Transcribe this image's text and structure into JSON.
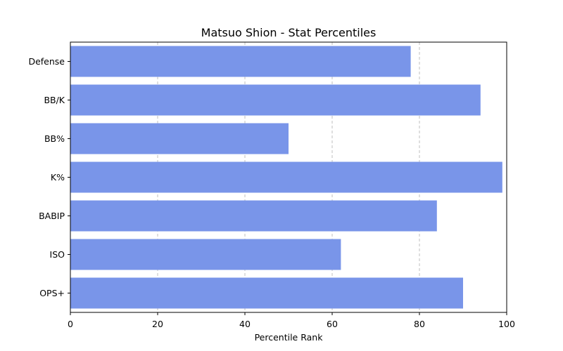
{
  "chart_data": {
    "type": "bar",
    "orientation": "horizontal",
    "title": "Matsuo Shion - Stat Percentiles",
    "xlabel": "Percentile Rank",
    "ylabel": "",
    "xlim": [
      0,
      100
    ],
    "x_ticks": [
      0,
      20,
      40,
      60,
      80,
      100
    ],
    "grid": "x-dashed",
    "categories": [
      "Defense",
      "BB/K",
      "BB%",
      "K%",
      "BABIP",
      "ISO",
      "OPS+"
    ],
    "values": [
      78,
      94,
      50,
      99,
      84,
      62,
      90
    ],
    "bar_color": "#7995e9"
  }
}
